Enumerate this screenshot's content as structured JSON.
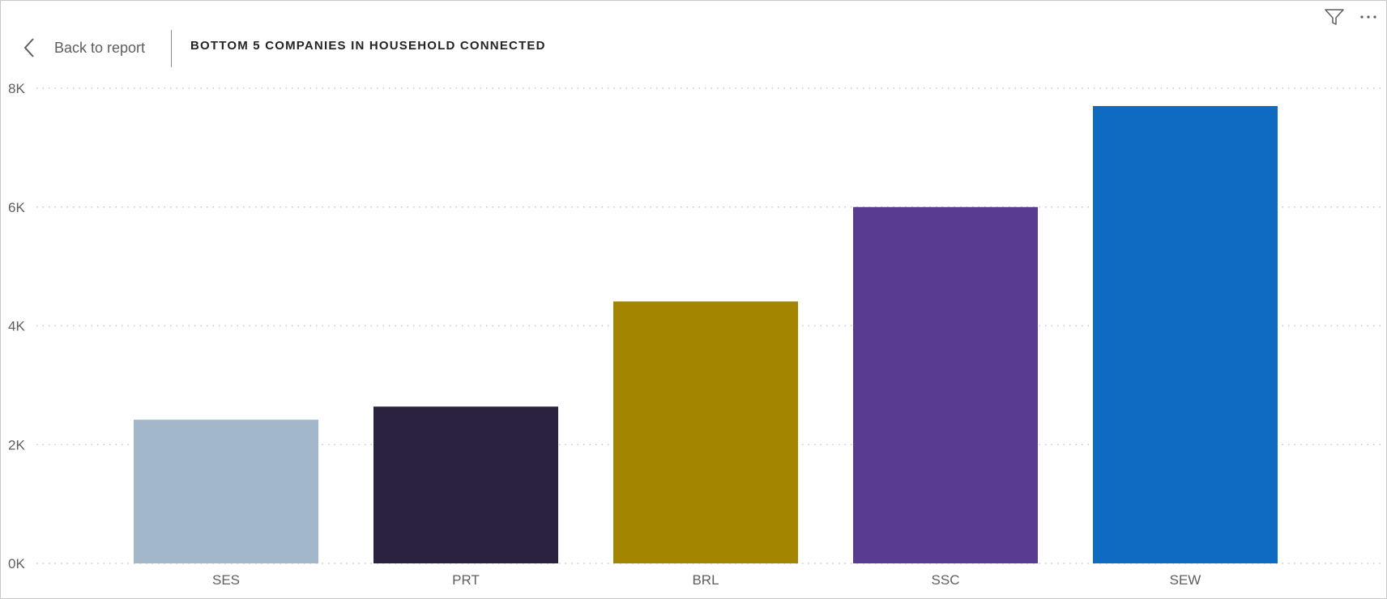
{
  "header": {
    "back_label": "Back to report",
    "title": "BOTTOM 5 COMPANIES IN HOUSEHOLD CONNECTED"
  },
  "icons": {
    "back": "chevron-left-icon",
    "filter": "filter-icon",
    "more": "more-options-icon"
  },
  "chart_data": {
    "type": "bar",
    "title": "BOTTOM 5 COMPANIES IN HOUSEHOLD CONNECTED",
    "categories": [
      "SES",
      "PRT",
      "BRL",
      "SSC",
      "SEW"
    ],
    "values": [
      2420,
      2640,
      4410,
      6000,
      7700
    ],
    "colors": [
      "#A3B7CB",
      "#2B2240",
      "#A38500",
      "#5A3B92",
      "#0F6BC2"
    ],
    "ylim": [
      0,
      8000
    ],
    "yticks": [
      0,
      2000,
      4000,
      6000,
      8000
    ],
    "ytick_labels": [
      "0K",
      "2K",
      "4K",
      "6K",
      "8K"
    ],
    "xlabel": "",
    "ylabel": "",
    "grid": true,
    "legend": "none"
  }
}
